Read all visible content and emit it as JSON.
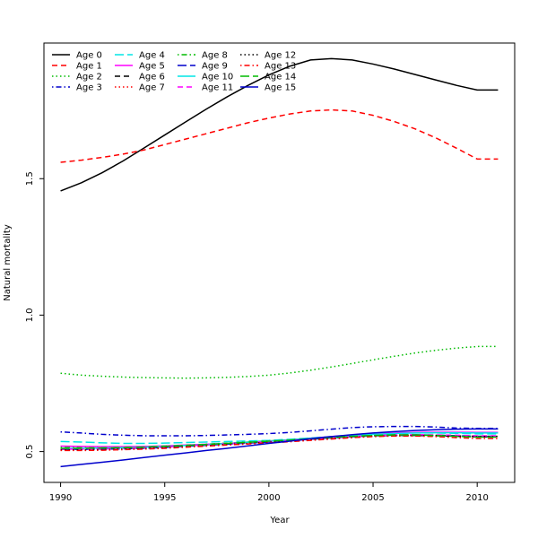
{
  "chart_data": {
    "type": "line",
    "title": "",
    "xlabel": "Year",
    "ylabel": "Natural mortality",
    "xlim": [
      1989.2,
      2011.8
    ],
    "ylim": [
      0.387,
      1.997
    ],
    "x_ticks": [
      1990,
      1995,
      2000,
      2005,
      2010
    ],
    "y_ticks": [
      0.5,
      1.0,
      1.5
    ],
    "legend_position": "top-left",
    "legend_columns": 5,
    "grid": false,
    "x": [
      1990,
      1991,
      1992,
      1993,
      1994,
      1995,
      1996,
      1997,
      1998,
      1999,
      2000,
      2001,
      2002,
      2003,
      2004,
      2005,
      2006,
      2007,
      2008,
      2009,
      2010,
      2011
    ],
    "series": [
      {
        "name": "Age 0",
        "color": "#000000",
        "dash": "solid",
        "values": [
          1.455,
          1.485,
          1.522,
          1.565,
          1.612,
          1.66,
          1.708,
          1.755,
          1.8,
          1.842,
          1.88,
          1.912,
          1.935,
          1.94,
          1.935,
          1.92,
          1.902,
          1.882,
          1.862,
          1.842,
          1.825,
          1.825
        ]
      },
      {
        "name": "Age 1",
        "color": "#ff0000",
        "dash": "dashed",
        "values": [
          1.56,
          1.568,
          1.578,
          1.59,
          1.605,
          1.625,
          1.645,
          1.665,
          1.685,
          1.705,
          1.722,
          1.737,
          1.748,
          1.752,
          1.748,
          1.732,
          1.71,
          1.683,
          1.65,
          1.612,
          1.572,
          1.572
        ]
      },
      {
        "name": "Age 2",
        "color": "#00bb00",
        "dash": "dotted",
        "values": [
          0.787,
          0.78,
          0.776,
          0.773,
          0.771,
          0.77,
          0.769,
          0.77,
          0.772,
          0.775,
          0.78,
          0.788,
          0.798,
          0.81,
          0.823,
          0.836,
          0.849,
          0.861,
          0.871,
          0.879,
          0.885,
          0.885
        ]
      },
      {
        "name": "Age 3",
        "color": "#0000cc",
        "dash": "dashdot",
        "values": [
          0.572,
          0.568,
          0.563,
          0.56,
          0.558,
          0.558,
          0.558,
          0.559,
          0.561,
          0.563,
          0.566,
          0.57,
          0.576,
          0.582,
          0.588,
          0.591,
          0.592,
          0.592,
          0.59,
          0.586,
          0.585,
          0.585
        ]
      },
      {
        "name": "Age 4",
        "color": "#00e5e5",
        "dash": "longdash",
        "values": [
          0.537,
          0.535,
          0.532,
          0.53,
          0.53,
          0.531,
          0.533,
          0.535,
          0.537,
          0.539,
          0.541,
          0.545,
          0.55,
          0.555,
          0.559,
          0.563,
          0.566,
          0.568,
          0.568,
          0.567,
          0.565,
          0.565
        ]
      },
      {
        "name": "Age 5",
        "color": "#ff00ff",
        "dash": "solid",
        "values": [
          0.52,
          0.519,
          0.518,
          0.518,
          0.519,
          0.521,
          0.524,
          0.527,
          0.53,
          0.534,
          0.538,
          0.543,
          0.549,
          0.555,
          0.56,
          0.565,
          0.568,
          0.57,
          0.571,
          0.571,
          0.57,
          0.57
        ]
      },
      {
        "name": "Age 6",
        "color": "#000000",
        "dash": "dashed",
        "values": [
          0.51,
          0.51,
          0.511,
          0.512,
          0.514,
          0.517,
          0.521,
          0.525,
          0.529,
          0.533,
          0.537,
          0.541,
          0.546,
          0.551,
          0.555,
          0.558,
          0.559,
          0.559,
          0.558,
          0.556,
          0.554,
          0.554
        ]
      },
      {
        "name": "Age 7",
        "color": "#ff0000",
        "dash": "dotted",
        "values": [
          0.505,
          0.505,
          0.506,
          0.508,
          0.511,
          0.514,
          0.518,
          0.522,
          0.526,
          0.53,
          0.534,
          0.538,
          0.543,
          0.548,
          0.552,
          0.556,
          0.558,
          0.559,
          0.558,
          0.557,
          0.556,
          0.556
        ]
      },
      {
        "name": "Age 8",
        "color": "#00bb00",
        "dash": "dashdot",
        "values": [
          0.515,
          0.514,
          0.514,
          0.515,
          0.517,
          0.52,
          0.523,
          0.527,
          0.531,
          0.535,
          0.539,
          0.543,
          0.548,
          0.552,
          0.556,
          0.559,
          0.561,
          0.561,
          0.56,
          0.558,
          0.556,
          0.556
        ]
      },
      {
        "name": "Age 9",
        "color": "#0000cc",
        "dash": "longdash",
        "values": [
          0.508,
          0.508,
          0.509,
          0.51,
          0.512,
          0.515,
          0.519,
          0.523,
          0.527,
          0.531,
          0.535,
          0.54,
          0.545,
          0.55,
          0.554,
          0.558,
          0.56,
          0.561,
          0.56,
          0.558,
          0.556,
          0.556
        ]
      },
      {
        "name": "Age 10",
        "color": "#00e5e5",
        "dash": "solid",
        "values": [
          0.512,
          0.512,
          0.513,
          0.514,
          0.516,
          0.519,
          0.522,
          0.526,
          0.53,
          0.534,
          0.538,
          0.543,
          0.549,
          0.554,
          0.559,
          0.563,
          0.566,
          0.568,
          0.569,
          0.569,
          0.568,
          0.568
        ]
      },
      {
        "name": "Age 11",
        "color": "#ff00ff",
        "dash": "dashed",
        "values": [
          0.509,
          0.509,
          0.51,
          0.512,
          0.514,
          0.517,
          0.521,
          0.525,
          0.529,
          0.533,
          0.537,
          0.541,
          0.546,
          0.551,
          0.555,
          0.559,
          0.561,
          0.562,
          0.561,
          0.56,
          0.558,
          0.558
        ]
      },
      {
        "name": "Age 12",
        "color": "#000000",
        "dash": "dotted",
        "values": [
          0.506,
          0.506,
          0.507,
          0.509,
          0.511,
          0.514,
          0.518,
          0.522,
          0.526,
          0.53,
          0.534,
          0.538,
          0.543,
          0.548,
          0.552,
          0.556,
          0.558,
          0.559,
          0.558,
          0.556,
          0.555,
          0.555
        ]
      },
      {
        "name": "Age 13",
        "color": "#ff0000",
        "dash": "dashdot",
        "values": [
          0.504,
          0.504,
          0.505,
          0.507,
          0.509,
          0.512,
          0.516,
          0.52,
          0.524,
          0.528,
          0.532,
          0.536,
          0.541,
          0.546,
          0.551,
          0.555,
          0.557,
          0.557,
          0.555,
          0.551,
          0.548,
          0.548
        ]
      },
      {
        "name": "Age 14",
        "color": "#00bb00",
        "dash": "longdash",
        "values": [
          0.512,
          0.512,
          0.513,
          0.514,
          0.516,
          0.519,
          0.522,
          0.526,
          0.53,
          0.534,
          0.538,
          0.542,
          0.547,
          0.552,
          0.556,
          0.559,
          0.561,
          0.561,
          0.559,
          0.556,
          0.553,
          0.553
        ]
      },
      {
        "name": "Age 15",
        "color": "#0000cc",
        "dash": "solid",
        "values": [
          0.445,
          0.453,
          0.461,
          0.469,
          0.478,
          0.487,
          0.495,
          0.504,
          0.512,
          0.521,
          0.53,
          0.538,
          0.547,
          0.555,
          0.562,
          0.568,
          0.573,
          0.577,
          0.58,
          0.582,
          0.583,
          0.583
        ]
      }
    ]
  }
}
